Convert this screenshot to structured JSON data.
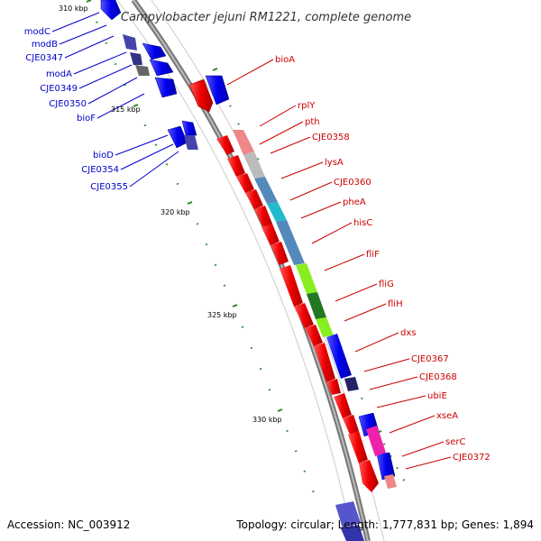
{
  "title": "Campylobacter jejuni RM1221, complete genome",
  "footer": {
    "accession": "Accession: NC_003912",
    "summary": "Topology: circular; Length: 1,777,831 bp; Genes: 1,894"
  },
  "colors": {
    "left_labels": "#0000cc",
    "right_labels": "#cc0000",
    "backbone": "#888888",
    "ticks": "#228822",
    "forward_cds": "#ff0000",
    "reverse_cds": "#0000ff"
  },
  "kbp_labels": [
    "310 kbp",
    "315 kbp",
    "320 kbp",
    "325 kbp",
    "330 kbp"
  ],
  "left_genes": [
    "modC",
    "modB",
    "CJE0347",
    "modA",
    "CJE0349",
    "CJE0350",
    "bioF",
    "bioD",
    "CJE0354",
    "CJE0355"
  ],
  "right_genes": [
    "bioA",
    "rplY",
    "pth",
    "CJE0358",
    "lysA",
    "CJE0360",
    "pheA",
    "hisC",
    "fliF",
    "fliG",
    "fliH",
    "dxs",
    "CJE0367",
    "CJE0368",
    "ubiE",
    "xseA",
    "serC",
    "CJE0372"
  ]
}
